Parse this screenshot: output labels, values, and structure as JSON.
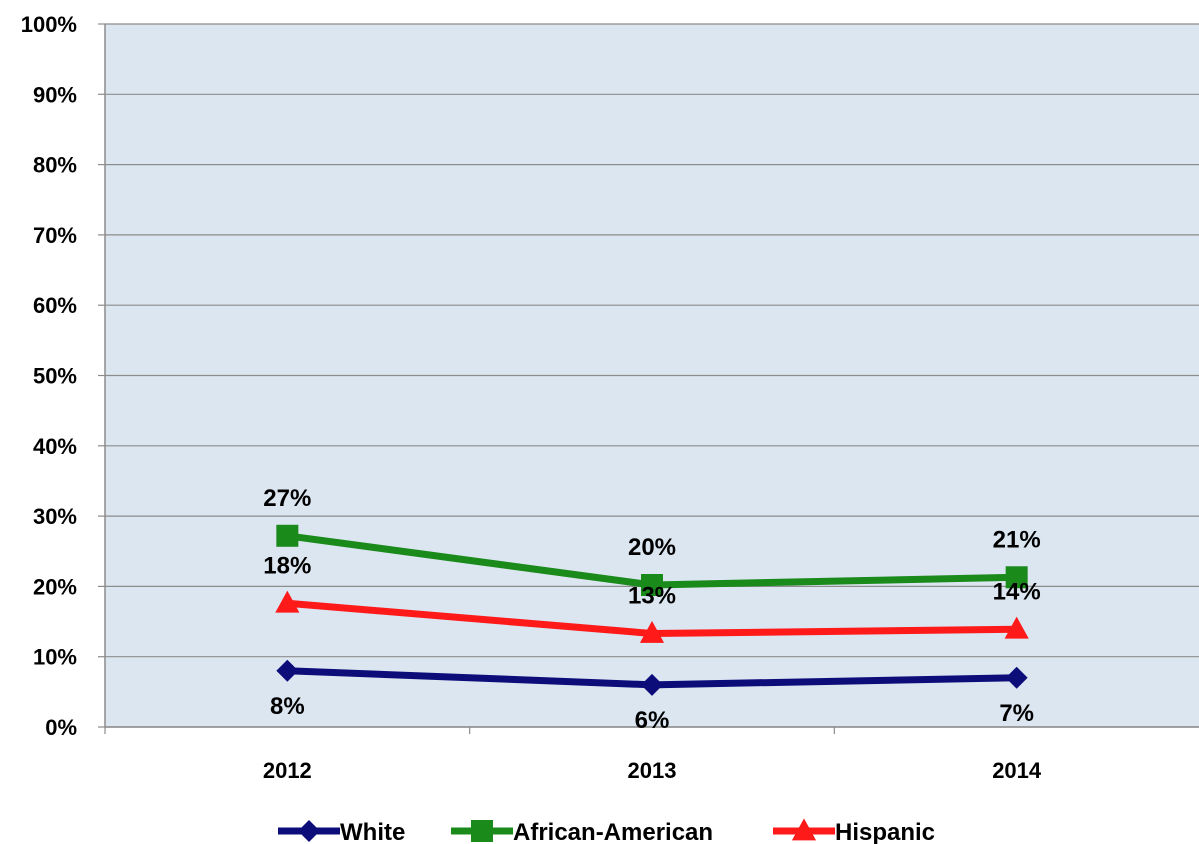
{
  "chart_data": {
    "type": "line",
    "categories": [
      "2012",
      "2013",
      "2014"
    ],
    "y_ticks": [
      "0%",
      "10%",
      "20%",
      "30%",
      "40%",
      "50%",
      "60%",
      "70%",
      "80%",
      "90%",
      "100%"
    ],
    "ylim": [
      0,
      100
    ],
    "grid": true,
    "plot_background": "#dce6f1",
    "legend_position": "bottom",
    "series": [
      {
        "name": "White",
        "values": [
          8,
          6,
          7
        ],
        "labels": [
          "8%",
          "6%",
          "7%"
        ],
        "color": "#0d0d7a",
        "marker": "diamond",
        "label_position": "below"
      },
      {
        "name": "African-American",
        "values": [
          27.2,
          20.2,
          21.3
        ],
        "labels": [
          "27%",
          "20%",
          "21%"
        ],
        "color": "#1a8a1a",
        "marker": "square",
        "label_position": "above"
      },
      {
        "name": "Hispanic",
        "values": [
          17.6,
          13.3,
          13.9
        ],
        "labels": [
          "18%",
          "13%",
          "14%"
        ],
        "color": "#ff1a1a",
        "marker": "triangle",
        "label_position": "above"
      }
    ]
  }
}
